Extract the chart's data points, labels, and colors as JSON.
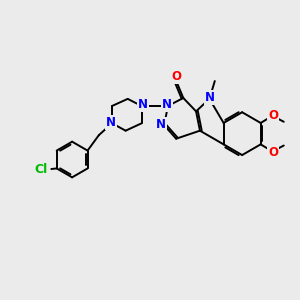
{
  "background_color": "#ebebeb",
  "bond_color": "#000000",
  "nitrogen_color": "#0000ff",
  "oxygen_color": "#ff0000",
  "chlorine_color": "#00bb00",
  "label_fontsize": 8.5,
  "bond_lw": 1.4,
  "figsize": [
    3.0,
    3.0
  ],
  "dpi": 100,
  "xlim": [
    0,
    10
  ],
  "ylim": [
    0,
    10
  ]
}
